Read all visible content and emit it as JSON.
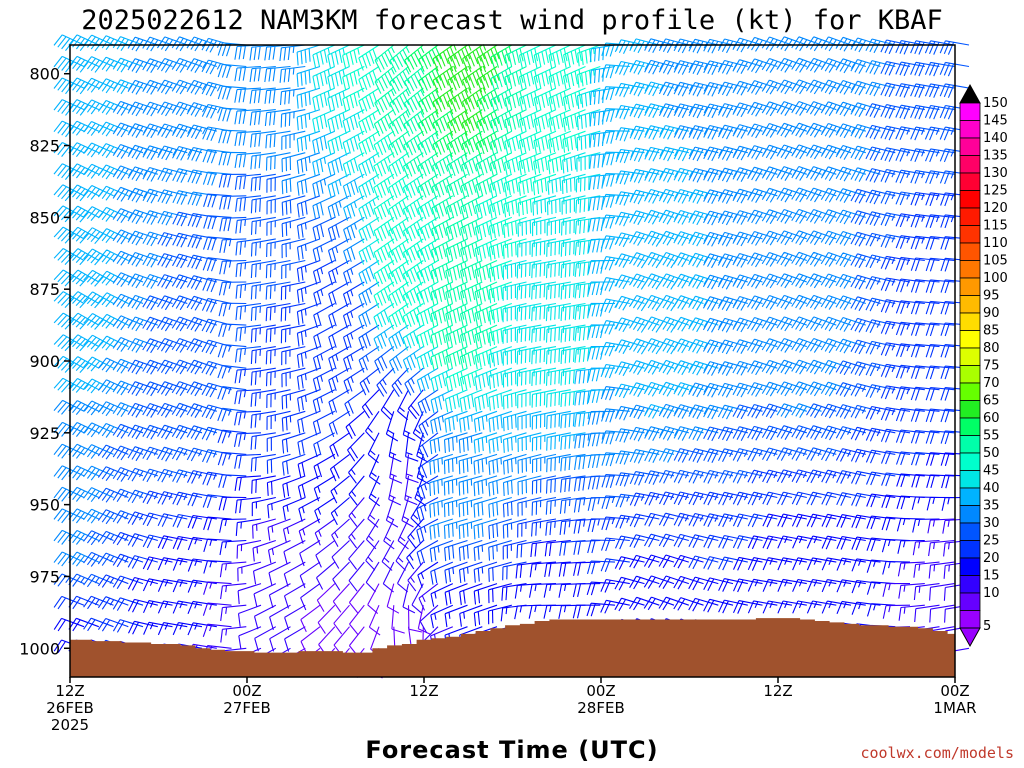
{
  "chart_data": {
    "type": "wind-profile",
    "title": "2025022612 NAM3KM forecast wind profile (kt) for KBAF",
    "xlabel": "Forecast Time (UTC)",
    "credit": "coolwx.com/models",
    "y_ticks": [
      "800",
      "825",
      "850",
      "875",
      "900",
      "925",
      "950",
      "975",
      "1000"
    ],
    "ylim": [
      790,
      1010
    ],
    "x_ticks": [
      {
        "h": 0,
        "lines": [
          "12Z",
          "26FEB",
          "2025"
        ]
      },
      {
        "h": 12,
        "lines": [
          "00Z",
          "27FEB"
        ]
      },
      {
        "h": 24,
        "lines": [
          "12Z"
        ]
      },
      {
        "h": 36,
        "lines": [
          "00Z",
          "28FEB"
        ]
      },
      {
        "h": 48,
        "lines": [
          "12Z"
        ]
      },
      {
        "h": 60,
        "lines": [
          "00Z",
          "1MAR"
        ]
      }
    ],
    "xlim_hours": [
      0,
      60
    ],
    "time_step_hours": 1,
    "levels_mb": [
      790,
      797.5,
      805,
      812.5,
      820,
      827.5,
      835,
      842.5,
      850,
      857.5,
      865,
      872.5,
      880,
      887.5,
      895,
      902.5,
      910,
      917.5,
      925,
      932.5,
      940,
      947.5,
      955,
      962.5,
      970,
      977.5,
      985,
      992.5,
      1000
    ],
    "surface_pressure_mb": [
      997,
      997,
      997.5,
      997.5,
      998,
      998,
      998.5,
      998.5,
      999,
      1000,
      1000.5,
      1001,
      1001,
      1001.5,
      1001.5,
      1001.5,
      1001,
      1001,
      1001,
      1001.5,
      1001.5,
      1000,
      999,
      998.5,
      997,
      996.5,
      996,
      995,
      994,
      993,
      992,
      991.5,
      990.5,
      990,
      990,
      990,
      990,
      990,
      990,
      990,
      990,
      990,
      990,
      990,
      990,
      990,
      990,
      989.5,
      989.5,
      989.5,
      990,
      990.5,
      991,
      991.5,
      992,
      992,
      992.5,
      992.5,
      993,
      994,
      995
    ],
    "wind_regime_points": [
      {
        "h": 0,
        "p": 790,
        "speed": 38,
        "dir": 295
      },
      {
        "h": 0,
        "p": 880,
        "speed": 40,
        "dir": 300
      },
      {
        "h": 0,
        "p": 960,
        "speed": 32,
        "dir": 295
      },
      {
        "h": 0,
        "p": 1000,
        "speed": 18,
        "dir": 290
      },
      {
        "h": 8,
        "p": 790,
        "speed": 35,
        "dir": 290
      },
      {
        "h": 8,
        "p": 900,
        "speed": 30,
        "dir": 290
      },
      {
        "h": 8,
        "p": 1000,
        "speed": 15,
        "dir": 280
      },
      {
        "h": 14,
        "p": 790,
        "speed": 32,
        "dir": 265
      },
      {
        "h": 14,
        "p": 880,
        "speed": 25,
        "dir": 260
      },
      {
        "h": 14,
        "p": 1000,
        "speed": 10,
        "dir": 240
      },
      {
        "h": 18,
        "p": 790,
        "speed": 45,
        "dir": 245
      },
      {
        "h": 18,
        "p": 880,
        "speed": 22,
        "dir": 240
      },
      {
        "h": 18,
        "p": 1000,
        "speed": 8,
        "dir": 220
      },
      {
        "h": 22,
        "p": 790,
        "speed": 55,
        "dir": 230
      },
      {
        "h": 22,
        "p": 860,
        "speed": 50,
        "dir": 235
      },
      {
        "h": 22,
        "p": 930,
        "speed": 15,
        "dir": 185
      },
      {
        "h": 22,
        "p": 1000,
        "speed": 10,
        "dir": 170
      },
      {
        "h": 26,
        "p": 790,
        "speed": 65,
        "dir": 235
      },
      {
        "h": 26,
        "p": 880,
        "speed": 55,
        "dir": 245
      },
      {
        "h": 26,
        "p": 940,
        "speed": 35,
        "dir": 255
      },
      {
        "h": 26,
        "p": 1000,
        "speed": 15,
        "dir": 250
      },
      {
        "h": 32,
        "p": 790,
        "speed": 50,
        "dir": 245
      },
      {
        "h": 32,
        "p": 880,
        "speed": 45,
        "dir": 260
      },
      {
        "h": 32,
        "p": 1000,
        "speed": 15,
        "dir": 270
      },
      {
        "h": 40,
        "p": 790,
        "speed": 35,
        "dir": 285
      },
      {
        "h": 40,
        "p": 880,
        "speed": 38,
        "dir": 290
      },
      {
        "h": 40,
        "p": 1000,
        "speed": 18,
        "dir": 290
      },
      {
        "h": 50,
        "p": 790,
        "speed": 35,
        "dir": 290
      },
      {
        "h": 50,
        "p": 880,
        "speed": 32,
        "dir": 290
      },
      {
        "h": 50,
        "p": 1000,
        "speed": 15,
        "dir": 280
      },
      {
        "h": 60,
        "p": 790,
        "speed": 28,
        "dir": 280
      },
      {
        "h": 60,
        "p": 880,
        "speed": 22,
        "dir": 275
      },
      {
        "h": 60,
        "p": 1000,
        "speed": 12,
        "dir": 260
      }
    ],
    "colorbar": {
      "labels": [
        "150",
        "145",
        "140",
        "135",
        "130",
        "125",
        "120",
        "115",
        "110",
        "105",
        "100",
        "95",
        "90",
        "85",
        "80",
        "75",
        "70",
        "65",
        "60",
        "55",
        "50",
        "45",
        "40",
        "35",
        "30",
        "25",
        "20",
        "15",
        "10",
        "5"
      ],
      "colors": [
        "#ff00ff",
        "#ff00cc",
        "#ff0099",
        "#ff0066",
        "#ff0033",
        "#ff0000",
        "#ff1a00",
        "#ff3300",
        "#ff5500",
        "#ff7700",
        "#ff9900",
        "#ffbb00",
        "#ffdd00",
        "#ffff00",
        "#ddff00",
        "#aaff00",
        "#66ff00",
        "#22ee22",
        "#00ff66",
        "#00ffaa",
        "#00ffcc",
        "#00e6e6",
        "#00b3ff",
        "#0088ff",
        "#0055ff",
        "#0033ff",
        "#0000ff",
        "#3300ff",
        "#6600ff",
        "#9900ff"
      ],
      "top_color": "#000000",
      "bottom_color": "#9900ff"
    },
    "ground_color": "#a0522d"
  }
}
